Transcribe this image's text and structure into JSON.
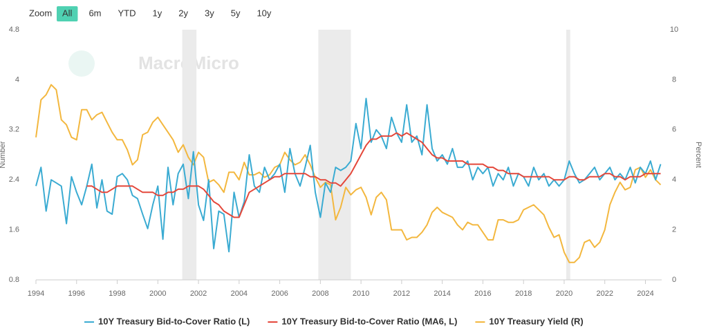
{
  "zoom": {
    "label": "Zoom",
    "buttons": [
      "All",
      "6m",
      "YTD",
      "1y",
      "2y",
      "3y",
      "5y",
      "10y"
    ],
    "active_index": 0
  },
  "watermark": "MacroMicro",
  "chart_data": {
    "type": "line",
    "ylabel": "Number",
    "y2label": "Percent",
    "xlim": [
      1994,
      2024.8
    ],
    "xticks": [
      1994,
      1996,
      1998,
      2000,
      2002,
      2004,
      2006,
      2008,
      2010,
      2012,
      2014,
      2016,
      2018,
      2020,
      2022,
      2024
    ],
    "ylim": [
      0.8,
      4.8
    ],
    "yticks": [
      0.8,
      1.6,
      2.4,
      3.2,
      4,
      4.8
    ],
    "y2lim": [
      0,
      10
    ],
    "y2ticks": [
      0,
      2,
      4,
      6,
      8,
      10
    ],
    "grid": false,
    "shaded_periods": [
      [
        2001.2,
        2001.9
      ],
      [
        2007.9,
        2009.5
      ],
      [
        2020.1,
        2020.3
      ]
    ],
    "x": [
      1994,
      1994.25,
      1994.5,
      1994.75,
      1995,
      1995.25,
      1995.5,
      1995.75,
      1996,
      1996.25,
      1996.5,
      1996.75,
      1997,
      1997.25,
      1997.5,
      1997.75,
      1998,
      1998.25,
      1998.5,
      1998.75,
      1999,
      1999.25,
      1999.5,
      1999.75,
      2000,
      2000.25,
      2000.5,
      2000.75,
      2001,
      2001.25,
      2001.5,
      2001.75,
      2002,
      2002.25,
      2002.5,
      2002.75,
      2003,
      2003.25,
      2003.5,
      2003.75,
      2004,
      2004.25,
      2004.5,
      2004.75,
      2005,
      2005.25,
      2005.5,
      2005.75,
      2006,
      2006.25,
      2006.5,
      2006.75,
      2007,
      2007.25,
      2007.5,
      2007.75,
      2008,
      2008.25,
      2008.5,
      2008.75,
      2009,
      2009.25,
      2009.5,
      2009.75,
      2010,
      2010.25,
      2010.5,
      2010.75,
      2011,
      2011.25,
      2011.5,
      2011.75,
      2012,
      2012.25,
      2012.5,
      2012.75,
      2013,
      2013.25,
      2013.5,
      2013.75,
      2014,
      2014.25,
      2014.5,
      2014.75,
      2015,
      2015.25,
      2015.5,
      2015.75,
      2016,
      2016.25,
      2016.5,
      2016.75,
      2017,
      2017.25,
      2017.5,
      2017.75,
      2018,
      2018.25,
      2018.5,
      2018.75,
      2019,
      2019.25,
      2019.5,
      2019.75,
      2020,
      2020.25,
      2020.5,
      2020.75,
      2021,
      2021.25,
      2021.5,
      2021.75,
      2022,
      2022.25,
      2022.5,
      2022.75,
      2023,
      2023.25,
      2023.5,
      2023.75,
      2024,
      2024.25,
      2024.5,
      2024.75
    ],
    "series": [
      {
        "name": "10Y Treasury Bid-to-Cover Ratio (L)",
        "color": "#3aabd2",
        "axis": "y",
        "values": [
          2.3,
          2.6,
          1.9,
          2.4,
          2.35,
          2.3,
          1.7,
          2.45,
          2.2,
          2.0,
          2.3,
          2.65,
          1.95,
          2.4,
          1.9,
          1.85,
          2.45,
          2.5,
          2.4,
          2.15,
          2.1,
          1.85,
          1.62,
          2.0,
          2.3,
          1.45,
          2.6,
          2.0,
          2.5,
          2.65,
          2.1,
          2.85,
          2.0,
          1.75,
          2.4,
          1.3,
          1.9,
          1.85,
          1.25,
          2.2,
          1.8,
          2.05,
          2.8,
          2.3,
          2.2,
          2.6,
          2.4,
          2.5,
          2.65,
          2.2,
          2.9,
          2.5,
          2.3,
          2.6,
          2.95,
          2.2,
          1.8,
          2.35,
          2.2,
          2.6,
          2.55,
          2.6,
          2.7,
          3.3,
          2.9,
          3.7,
          3.0,
          3.2,
          3.1,
          2.9,
          3.4,
          3.15,
          3.0,
          3.6,
          3.0,
          3.1,
          2.8,
          3.6,
          2.9,
          2.7,
          2.8,
          2.65,
          2.9,
          2.6,
          2.6,
          2.7,
          2.4,
          2.6,
          2.5,
          2.6,
          2.3,
          2.5,
          2.4,
          2.6,
          2.3,
          2.5,
          2.45,
          2.3,
          2.6,
          2.4,
          2.5,
          2.3,
          2.4,
          2.3,
          2.4,
          2.7,
          2.5,
          2.35,
          2.4,
          2.5,
          2.6,
          2.4,
          2.5,
          2.6,
          2.4,
          2.5,
          2.4,
          2.6,
          2.35,
          2.6,
          2.5,
          2.7,
          2.4,
          2.65
        ]
      },
      {
        "name": "10Y Treasury Bid-to-Cover Ratio (MA6, L)",
        "color": "#e4473a",
        "axis": "y",
        "values": [
          null,
          null,
          null,
          null,
          null,
          null,
          null,
          null,
          null,
          null,
          2.3,
          2.3,
          2.25,
          2.2,
          2.2,
          2.25,
          2.3,
          2.3,
          2.3,
          2.3,
          2.25,
          2.2,
          2.2,
          2.2,
          2.15,
          2.15,
          2.2,
          2.2,
          2.25,
          2.25,
          2.3,
          2.3,
          2.3,
          2.25,
          2.15,
          2.05,
          2.0,
          1.9,
          1.85,
          1.8,
          1.8,
          2.0,
          2.2,
          2.25,
          2.3,
          2.35,
          2.4,
          2.45,
          2.45,
          2.5,
          2.5,
          2.5,
          2.5,
          2.5,
          2.45,
          2.45,
          2.4,
          2.4,
          2.35,
          2.35,
          2.3,
          2.4,
          2.5,
          2.65,
          2.8,
          2.95,
          3.05,
          3.05,
          3.1,
          3.1,
          3.1,
          3.15,
          3.1,
          3.15,
          3.1,
          3.05,
          3.0,
          2.9,
          2.8,
          2.75,
          2.75,
          2.7,
          2.7,
          2.7,
          2.7,
          2.65,
          2.65,
          2.65,
          2.65,
          2.6,
          2.6,
          2.55,
          2.55,
          2.5,
          2.5,
          2.5,
          2.45,
          2.45,
          2.45,
          2.45,
          2.45,
          2.45,
          2.4,
          2.4,
          2.4,
          2.45,
          2.45,
          2.4,
          2.4,
          2.45,
          2.45,
          2.45,
          2.5,
          2.5,
          2.45,
          2.45,
          2.4,
          2.45,
          2.45,
          2.45,
          2.5,
          2.5,
          2.5,
          2.5
        ]
      },
      {
        "name": "10Y Treasury Yield (R)",
        "color": "#f3b73e",
        "axis": "y2",
        "values": [
          5.7,
          7.2,
          7.4,
          7.8,
          7.6,
          6.4,
          6.2,
          5.7,
          5.6,
          6.8,
          6.8,
          6.4,
          6.6,
          6.7,
          6.3,
          5.9,
          5.6,
          5.6,
          5.2,
          4.6,
          4.8,
          5.8,
          5.9,
          6.3,
          6.5,
          6.2,
          5.9,
          5.6,
          5.1,
          5.4,
          4.9,
          4.6,
          5.1,
          4.9,
          3.9,
          4.0,
          3.8,
          3.5,
          4.3,
          4.3,
          4.0,
          4.7,
          4.2,
          4.2,
          4.3,
          4.1,
          4.2,
          4.5,
          4.6,
          5.1,
          4.8,
          4.6,
          4.7,
          5.0,
          4.6,
          4.1,
          3.7,
          3.9,
          3.8,
          2.4,
          2.9,
          3.7,
          3.4,
          3.6,
          3.7,
          3.3,
          2.6,
          3.3,
          3.5,
          3.2,
          2.0,
          2.0,
          2.0,
          1.6,
          1.7,
          1.7,
          1.9,
          2.2,
          2.7,
          2.9,
          2.7,
          2.6,
          2.5,
          2.2,
          2.0,
          2.3,
          2.2,
          2.2,
          1.9,
          1.6,
          1.6,
          2.4,
          2.4,
          2.3,
          2.3,
          2.4,
          2.8,
          2.9,
          3.0,
          2.8,
          2.6,
          2.1,
          1.7,
          1.8,
          1.1,
          0.7,
          0.7,
          0.9,
          1.5,
          1.6,
          1.3,
          1.5,
          2.0,
          3.0,
          3.5,
          3.9,
          3.6,
          3.7,
          4.4,
          4.5,
          4.1,
          4.4,
          4.0,
          3.8
        ]
      }
    ]
  }
}
